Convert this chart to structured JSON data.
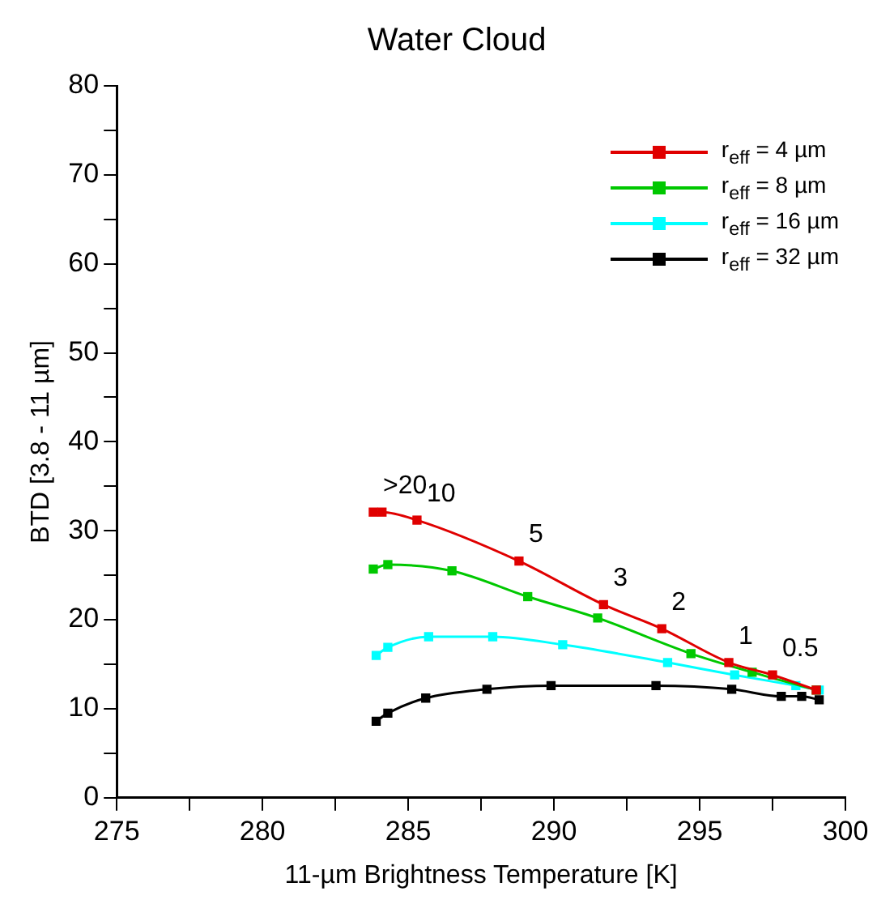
{
  "chart_data": {
    "type": "line",
    "title": "Water Cloud",
    "xlabel": "11-µm Brightness Temperature [K]",
    "ylabel": "BTD [3.8 - 11 µm]",
    "xlim": [
      275,
      300
    ],
    "xticks": [
      275,
      {
        "value": 277.5,
        "label": null
      },
      280,
      {
        "value": 282.5,
        "label": null
      },
      285,
      {
        "value": 287.5,
        "label": null
      },
      290,
      {
        "value": 292.5,
        "label": null
      },
      295,
      {
        "value": 297.5,
        "label": null
      },
      300
    ],
    "ylim": [
      0,
      80
    ],
    "yticks": [
      0,
      {
        "value": 5,
        "label": null
      },
      10,
      {
        "value": 15,
        "label": null
      },
      20,
      {
        "value": 25,
        "label": null
      },
      30,
      {
        "value": 35,
        "label": null
      },
      40,
      {
        "value": 45,
        "label": null
      },
      50,
      {
        "value": 55,
        "label": null
      },
      60,
      {
        "value": 65,
        "label": null
      },
      70,
      {
        "value": 75,
        "label": null
      },
      80
    ],
    "grid": false,
    "legend": "top right",
    "marker": "square",
    "line_style": "solid",
    "series": [
      {
        "name": "r$_{eff}$ = 4 µm",
        "color": "#e00000",
        "x": [
          283.8,
          284.1,
          285.3,
          288.8,
          291.7,
          293.7,
          296.0,
          297.5,
          299.0
        ],
        "values": [
          32.1,
          32.1,
          31.2,
          26.6,
          21.7,
          19.0,
          15.2,
          13.8,
          12.1
        ]
      },
      {
        "name": "r$_{eff}$ = 8 µm",
        "color": "#00c800",
        "x": [
          283.8,
          284.3,
          286.5,
          289.1,
          291.5,
          294.7,
          296.8,
          299.0
        ],
        "values": [
          25.7,
          26.2,
          25.5,
          22.6,
          20.2,
          16.2,
          14.1,
          12.1
        ]
      },
      {
        "name": "r$_{eff}$ = 16 µm",
        "color": "#00ffff",
        "x": [
          283.9,
          284.3,
          285.7,
          287.9,
          290.3,
          293.9,
          296.2,
          298.3,
          299.1
        ],
        "values": [
          16.0,
          16.9,
          18.1,
          18.1,
          17.2,
          15.2,
          13.8,
          12.6,
          12.1
        ]
      },
      {
        "name": "r$_{eff}$ = 32 µm",
        "color": "#000000",
        "x": [
          283.9,
          284.3,
          285.6,
          287.7,
          289.9,
          293.5,
          296.1,
          297.8,
          298.5,
          299.1
        ],
        "values": [
          8.6,
          9.5,
          11.2,
          12.2,
          12.6,
          12.6,
          12.2,
          11.4,
          11.4,
          11.0
        ]
      }
    ],
    "annotations": [
      {
        "text": ">20",
        "x": 283.8,
        "y": 32.1
      },
      {
        "text": "10",
        "x": 285.3,
        "y": 31.2
      },
      {
        "text": "5",
        "x": 288.8,
        "y": 26.6
      },
      {
        "text": "3",
        "x": 291.7,
        "y": 21.7
      },
      {
        "text": "2",
        "x": 293.7,
        "y": 19.0
      },
      {
        "text": "1",
        "x": 296.0,
        "y": 15.2
      },
      {
        "text": "0.5",
        "x": 297.5,
        "y": 13.8
      }
    ]
  }
}
